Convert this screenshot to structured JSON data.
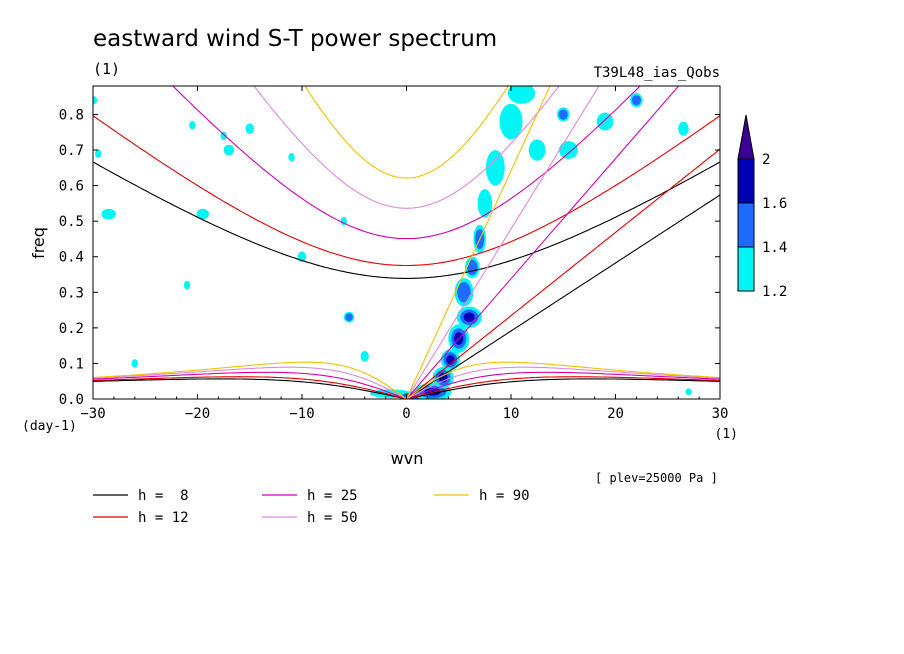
{
  "chart_data": {
    "type": "heatmap",
    "title": "eastward wind S-T power spectrum",
    "subtitle_left": "(1)",
    "subtitle_right": "T39L48_ias_Qobs",
    "xlabel": "wvn",
    "ylabel": "freq",
    "x_unit": "(1)",
    "y_unit": "(day-1)",
    "note": "[ plev=25000 Pa ]",
    "xlim": [
      -30,
      30
    ],
    "ylim": [
      0,
      0.88
    ],
    "x_ticks": [
      {
        "v": -30,
        "t": "-30"
      },
      {
        "v": -20,
        "t": "-20"
      },
      {
        "v": -10,
        "t": "-10"
      },
      {
        "v": 0,
        "t": "0"
      },
      {
        "v": 10,
        "t": "10"
      },
      {
        "v": 20,
        "t": "20"
      },
      {
        "v": 30,
        "t": "30"
      }
    ],
    "y_ticks": [
      {
        "v": 0.0,
        "t": "0.0"
      },
      {
        "v": 0.1,
        "t": "0.1"
      },
      {
        "v": 0.2,
        "t": "0.2"
      },
      {
        "v": 0.3,
        "t": "0.3"
      },
      {
        "v": 0.4,
        "t": "0.4"
      },
      {
        "v": 0.5,
        "t": "0.5"
      },
      {
        "v": 0.6,
        "t": "0.6"
      },
      {
        "v": 0.7,
        "t": "0.7"
      },
      {
        "v": 0.8,
        "t": "0.8"
      }
    ],
    "colorbar": {
      "levels": [
        {
          "label": "1.2",
          "color": "#00f5f5"
        },
        {
          "label": "1.4",
          "color": "#1e6cff"
        },
        {
          "label": "1.6",
          "color": "#0000b4"
        },
        {
          "label": "2",
          "color": "#3c0096"
        }
      ]
    },
    "dispersion_curves": [
      {
        "h": 8,
        "label": "h =  8",
        "color": "#000000"
      },
      {
        "h": 12,
        "label": "h = 12",
        "color": "#e00000"
      },
      {
        "h": 25,
        "label": "h = 25",
        "color": "#d400b0"
      },
      {
        "h": 50,
        "label": "h = 50",
        "color": "#e088e0"
      },
      {
        "h": 90,
        "label": "h = 90",
        "color": "#f0c000"
      }
    ],
    "power_blobs": [
      {
        "x": 2.5,
        "y": 0.02,
        "rx": 1.8,
        "ry": 0.025,
        "level": 3
      },
      {
        "x": 1.0,
        "y": 0.01,
        "rx": 2.0,
        "ry": 0.012,
        "level": 2
      },
      {
        "x": -1.5,
        "y": 0.015,
        "rx": 2.0,
        "ry": 0.012,
        "level": 1
      },
      {
        "x": 3.5,
        "y": 0.06,
        "rx": 1.0,
        "ry": 0.03,
        "level": 3
      },
      {
        "x": 4.2,
        "y": 0.11,
        "rx": 0.9,
        "ry": 0.03,
        "level": 3
      },
      {
        "x": 5.0,
        "y": 0.17,
        "rx": 1.0,
        "ry": 0.04,
        "level": 3
      },
      {
        "x": 6.0,
        "y": 0.23,
        "rx": 1.2,
        "ry": 0.03,
        "level": 3
      },
      {
        "x": 5.5,
        "y": 0.3,
        "rx": 0.9,
        "ry": 0.04,
        "level": 2
      },
      {
        "x": 6.3,
        "y": 0.37,
        "rx": 0.7,
        "ry": 0.03,
        "level": 2
      },
      {
        "x": 7.0,
        "y": 0.45,
        "rx": 0.6,
        "ry": 0.04,
        "level": 2
      },
      {
        "x": 7.5,
        "y": 0.55,
        "rx": 0.7,
        "ry": 0.04,
        "level": 1
      },
      {
        "x": 8.5,
        "y": 0.65,
        "rx": 0.9,
        "ry": 0.05,
        "level": 1
      },
      {
        "x": 10.0,
        "y": 0.78,
        "rx": 1.1,
        "ry": 0.05,
        "level": 1
      },
      {
        "x": 11.0,
        "y": 0.86,
        "rx": 1.3,
        "ry": 0.03,
        "level": 1
      },
      {
        "x": 12.5,
        "y": 0.7,
        "rx": 0.8,
        "ry": 0.03,
        "level": 1
      },
      {
        "x": 15.0,
        "y": 0.8,
        "rx": 0.6,
        "ry": 0.02,
        "level": 2
      },
      {
        "x": 15.5,
        "y": 0.7,
        "rx": 0.9,
        "ry": 0.025,
        "level": 1
      },
      {
        "x": 19.0,
        "y": 0.78,
        "rx": 0.8,
        "ry": 0.025,
        "level": 1
      },
      {
        "x": 22.0,
        "y": 0.84,
        "rx": 0.6,
        "ry": 0.02,
        "level": 2
      },
      {
        "x": 26.5,
        "y": 0.76,
        "rx": 0.5,
        "ry": 0.02,
        "level": 1
      },
      {
        "x": -5.5,
        "y": 0.23,
        "rx": 0.5,
        "ry": 0.015,
        "level": 2
      },
      {
        "x": -4.0,
        "y": 0.12,
        "rx": 0.4,
        "ry": 0.015,
        "level": 1
      },
      {
        "x": -10.0,
        "y": 0.4,
        "rx": 0.4,
        "ry": 0.015,
        "level": 1
      },
      {
        "x": -15.0,
        "y": 0.76,
        "rx": 0.4,
        "ry": 0.015,
        "level": 1
      },
      {
        "x": -17.0,
        "y": 0.7,
        "rx": 0.5,
        "ry": 0.015,
        "level": 1
      },
      {
        "x": -19.5,
        "y": 0.52,
        "rx": 0.6,
        "ry": 0.015,
        "level": 1
      },
      {
        "x": -28.5,
        "y": 0.52,
        "rx": 0.7,
        "ry": 0.015,
        "level": 1
      },
      {
        "x": -20.5,
        "y": 0.77,
        "rx": 0.3,
        "ry": 0.012,
        "level": 1
      },
      {
        "x": -21.0,
        "y": 0.32,
        "rx": 0.3,
        "ry": 0.012,
        "level": 1
      },
      {
        "x": -17.5,
        "y": 0.74,
        "rx": 0.3,
        "ry": 0.012,
        "level": 1
      },
      {
        "x": -11.0,
        "y": 0.68,
        "rx": 0.3,
        "ry": 0.012,
        "level": 1
      },
      {
        "x": -6.0,
        "y": 0.5,
        "rx": 0.3,
        "ry": 0.012,
        "level": 1
      },
      {
        "x": -26.0,
        "y": 0.1,
        "rx": 0.3,
        "ry": 0.012,
        "level": 1
      },
      {
        "x": -30.0,
        "y": 0.84,
        "rx": 0.4,
        "ry": 0.012,
        "level": 1
      },
      {
        "x": -29.5,
        "y": 0.69,
        "rx": 0.3,
        "ry": 0.012,
        "level": 1
      },
      {
        "x": 27.0,
        "y": 0.02,
        "rx": 0.3,
        "ry": 0.01,
        "level": 1
      }
    ]
  }
}
